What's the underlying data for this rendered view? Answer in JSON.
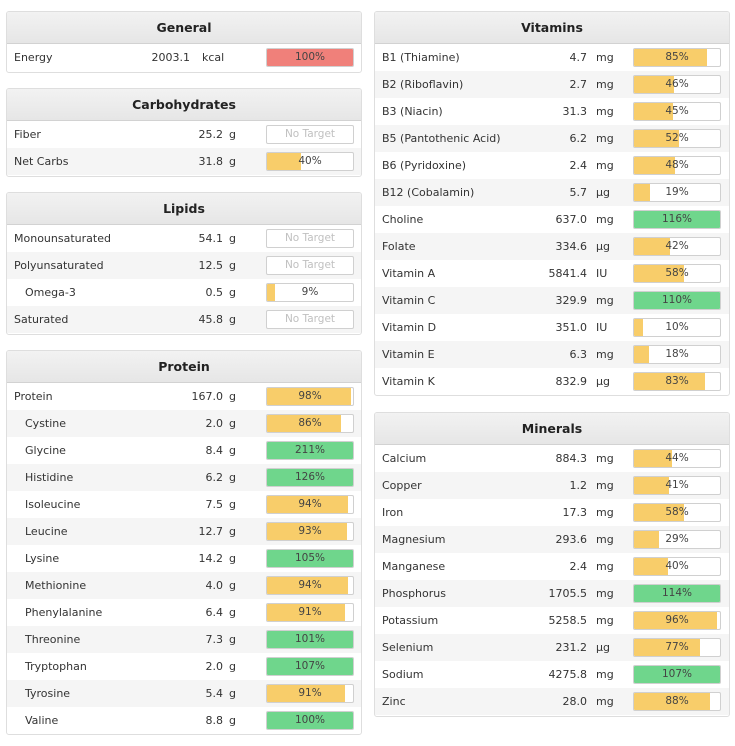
{
  "colors": {
    "over": "#6fd68c",
    "partial": "#f8cd6a",
    "energy": "#f0807a"
  },
  "general": {
    "title": "General",
    "rows": [
      {
        "name": "Energy",
        "amount": "2003.1",
        "unit": "kcal",
        "pct": "100%",
        "pct_value": 100
      }
    ]
  },
  "carbohydrates": {
    "title": "Carbohydrates",
    "rows": [
      {
        "name": "Fiber",
        "amount": "25.2",
        "unit": "g",
        "pct": "No Target",
        "pct_value": 0
      },
      {
        "name": "Net Carbs",
        "amount": "31.8",
        "unit": "g",
        "pct": "40%",
        "pct_value": 40
      }
    ]
  },
  "lipids": {
    "title": "Lipids",
    "rows": [
      {
        "name": "Monounsaturated",
        "amount": "54.1",
        "unit": "g",
        "pct": "No Target",
        "pct_value": 0
      },
      {
        "name": "Polyunsaturated",
        "amount": "12.5",
        "unit": "g",
        "pct": "No Target",
        "pct_value": 0
      },
      {
        "name": "Omega-3",
        "amount": "0.5",
        "unit": "g",
        "pct": "9%",
        "pct_value": 9
      },
      {
        "name": "Saturated",
        "amount": "45.8",
        "unit": "g",
        "pct": "No Target",
        "pct_value": 0
      }
    ]
  },
  "protein": {
    "title": "Protein",
    "rows": [
      {
        "name": "Protein",
        "amount": "167.0",
        "unit": "g",
        "pct": "98%",
        "pct_value": 98
      },
      {
        "name": "Cystine",
        "amount": "2.0",
        "unit": "g",
        "pct": "86%",
        "pct_value": 86
      },
      {
        "name": "Glycine",
        "amount": "8.4",
        "unit": "g",
        "pct": "211%",
        "pct_value": 211
      },
      {
        "name": "Histidine",
        "amount": "6.2",
        "unit": "g",
        "pct": "126%",
        "pct_value": 126
      },
      {
        "name": "Isoleucine",
        "amount": "7.5",
        "unit": "g",
        "pct": "94%",
        "pct_value": 94
      },
      {
        "name": "Leucine",
        "amount": "12.7",
        "unit": "g",
        "pct": "93%",
        "pct_value": 93
      },
      {
        "name": "Lysine",
        "amount": "14.2",
        "unit": "g",
        "pct": "105%",
        "pct_value": 105
      },
      {
        "name": "Methionine",
        "amount": "4.0",
        "unit": "g",
        "pct": "94%",
        "pct_value": 94
      },
      {
        "name": "Phenylalanine",
        "amount": "6.4",
        "unit": "g",
        "pct": "91%",
        "pct_value": 91
      },
      {
        "name": "Threonine",
        "amount": "7.3",
        "unit": "g",
        "pct": "101%",
        "pct_value": 101
      },
      {
        "name": "Tryptophan",
        "amount": "2.0",
        "unit": "g",
        "pct": "107%",
        "pct_value": 107
      },
      {
        "name": "Tyrosine",
        "amount": "5.4",
        "unit": "g",
        "pct": "91%",
        "pct_value": 91
      },
      {
        "name": "Valine",
        "amount": "8.8",
        "unit": "g",
        "pct": "100%",
        "pct_value": 100
      }
    ]
  },
  "vitamins": {
    "title": "Vitamins",
    "rows": [
      {
        "name": "B1 (Thiamine)",
        "amount": "4.7",
        "unit": "mg",
        "pct": "85%",
        "pct_value": 85
      },
      {
        "name": "B2 (Riboflavin)",
        "amount": "2.7",
        "unit": "mg",
        "pct": "46%",
        "pct_value": 46
      },
      {
        "name": "B3 (Niacin)",
        "amount": "31.3",
        "unit": "mg",
        "pct": "45%",
        "pct_value": 45
      },
      {
        "name": "B5 (Pantothenic Acid)",
        "amount": "6.2",
        "unit": "mg",
        "pct": "52%",
        "pct_value": 52
      },
      {
        "name": "B6 (Pyridoxine)",
        "amount": "2.4",
        "unit": "mg",
        "pct": "48%",
        "pct_value": 48
      },
      {
        "name": "B12 (Cobalamin)",
        "amount": "5.7",
        "unit": "µg",
        "pct": "19%",
        "pct_value": 19
      },
      {
        "name": "Choline",
        "amount": "637.0",
        "unit": "mg",
        "pct": "116%",
        "pct_value": 116
      },
      {
        "name": "Folate",
        "amount": "334.6",
        "unit": "µg",
        "pct": "42%",
        "pct_value": 42
      },
      {
        "name": "Vitamin A",
        "amount": "5841.4",
        "unit": "IU",
        "pct": "58%",
        "pct_value": 58
      },
      {
        "name": "Vitamin C",
        "amount": "329.9",
        "unit": "mg",
        "pct": "110%",
        "pct_value": 110
      },
      {
        "name": "Vitamin D",
        "amount": "351.0",
        "unit": "IU",
        "pct": "10%",
        "pct_value": 10
      },
      {
        "name": "Vitamin E",
        "amount": "6.3",
        "unit": "mg",
        "pct": "18%",
        "pct_value": 18
      },
      {
        "name": "Vitamin K",
        "amount": "832.9",
        "unit": "µg",
        "pct": "83%",
        "pct_value": 83
      }
    ]
  },
  "minerals": {
    "title": "Minerals",
    "rows": [
      {
        "name": "Calcium",
        "amount": "884.3",
        "unit": "mg",
        "pct": "44%",
        "pct_value": 44
      },
      {
        "name": "Copper",
        "amount": "1.2",
        "unit": "mg",
        "pct": "41%",
        "pct_value": 41
      },
      {
        "name": "Iron",
        "amount": "17.3",
        "unit": "mg",
        "pct": "58%",
        "pct_value": 58
      },
      {
        "name": "Magnesium",
        "amount": "293.6",
        "unit": "mg",
        "pct": "29%",
        "pct_value": 29
      },
      {
        "name": "Manganese",
        "amount": "2.4",
        "unit": "mg",
        "pct": "40%",
        "pct_value": 40
      },
      {
        "name": "Phosphorus",
        "amount": "1705.5",
        "unit": "mg",
        "pct": "114%",
        "pct_value": 114
      },
      {
        "name": "Potassium",
        "amount": "5258.5",
        "unit": "mg",
        "pct": "96%",
        "pct_value": 96
      },
      {
        "name": "Selenium",
        "amount": "231.2",
        "unit": "µg",
        "pct": "77%",
        "pct_value": 77
      },
      {
        "name": "Sodium",
        "amount": "4275.8",
        "unit": "mg",
        "pct": "107%",
        "pct_value": 107
      },
      {
        "name": "Zinc",
        "amount": "28.0",
        "unit": "mg",
        "pct": "88%",
        "pct_value": 88
      }
    ]
  }
}
